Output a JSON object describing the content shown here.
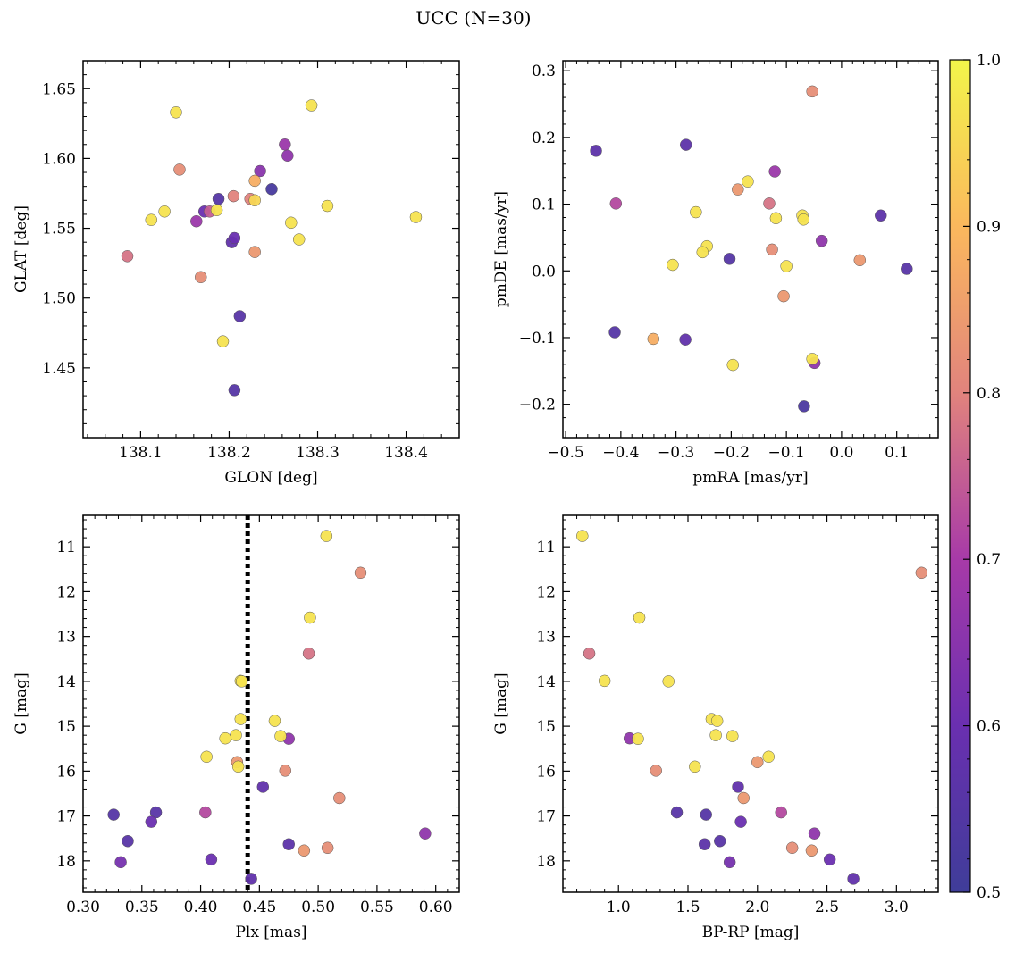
{
  "figure": {
    "title": "UCC (N=30)"
  },
  "chart_data": [
    {
      "type": "scatter",
      "xlabel": "GLON [deg]",
      "ylabel": "GLAT [deg]",
      "xlim": [
        138.035,
        138.46
      ],
      "ylim": [
        1.4,
        1.67
      ],
      "xticks": [
        138.1,
        138.2,
        138.3,
        138.4
      ],
      "yticks": [
        1.45,
        1.5,
        1.55,
        1.6,
        1.65
      ],
      "xtick_labels": [
        "138.1",
        "138.2",
        "138.3",
        "138.4"
      ],
      "ytick_labels": [
        "1.45",
        "1.50",
        "1.55",
        "1.60",
        "1.65"
      ],
      "points": [
        {
          "x": 138.14,
          "y": 1.633,
          "c": 0.97
        },
        {
          "x": 138.293,
          "y": 1.638,
          "c": 0.97
        },
        {
          "x": 138.263,
          "y": 1.61,
          "c": 0.68
        },
        {
          "x": 138.266,
          "y": 1.602,
          "c": 0.66
        },
        {
          "x": 138.144,
          "y": 1.592,
          "c": 0.82
        },
        {
          "x": 138.235,
          "y": 1.591,
          "c": 0.65
        },
        {
          "x": 138.229,
          "y": 1.584,
          "c": 0.88
        },
        {
          "x": 138.248,
          "y": 1.578,
          "c": 0.52
        },
        {
          "x": 138.205,
          "y": 1.573,
          "c": 0.8
        },
        {
          "x": 138.188,
          "y": 1.571,
          "c": 0.55
        },
        {
          "x": 138.224,
          "y": 1.571,
          "c": 0.8
        },
        {
          "x": 138.229,
          "y": 1.57,
          "c": 0.95
        },
        {
          "x": 138.311,
          "y": 1.566,
          "c": 0.97
        },
        {
          "x": 138.127,
          "y": 1.562,
          "c": 0.97
        },
        {
          "x": 138.172,
          "y": 1.562,
          "c": 0.6
        },
        {
          "x": 138.178,
          "y": 1.562,
          "c": 0.75
        },
        {
          "x": 138.186,
          "y": 1.563,
          "c": 0.97
        },
        {
          "x": 138.411,
          "y": 1.558,
          "c": 0.97
        },
        {
          "x": 138.112,
          "y": 1.556,
          "c": 0.97
        },
        {
          "x": 138.163,
          "y": 1.555,
          "c": 0.68
        },
        {
          "x": 138.27,
          "y": 1.554,
          "c": 0.97
        },
        {
          "x": 138.206,
          "y": 1.543,
          "c": 0.6
        },
        {
          "x": 138.279,
          "y": 1.542,
          "c": 0.97
        },
        {
          "x": 138.203,
          "y": 1.54,
          "c": 0.58
        },
        {
          "x": 138.229,
          "y": 1.533,
          "c": 0.84
        },
        {
          "x": 138.085,
          "y": 1.53,
          "c": 0.78
        },
        {
          "x": 138.168,
          "y": 1.515,
          "c": 0.82
        },
        {
          "x": 138.212,
          "y": 1.487,
          "c": 0.56
        },
        {
          "x": 138.193,
          "y": 1.469,
          "c": 0.97
        },
        {
          "x": 138.206,
          "y": 1.434,
          "c": 0.55
        }
      ]
    },
    {
      "type": "scatter",
      "xlabel": "pmRA [mas/yr]",
      "ylabel": "pmDE [mas/yr]",
      "xlim": [
        -0.505,
        0.175
      ],
      "ylim": [
        -0.25,
        0.315
      ],
      "xticks": [
        -0.5,
        -0.4,
        -0.3,
        -0.2,
        -0.1,
        0.0,
        0.1
      ],
      "yticks": [
        -0.2,
        -0.1,
        0.0,
        0.1,
        0.2,
        0.3
      ],
      "xtick_labels": [
        "−0.5",
        "−0.4",
        "−0.3",
        "−0.2",
        "−0.1",
        "0.0",
        "0.1"
      ],
      "ytick_labels": [
        "−0.2",
        "−0.1",
        "0.0",
        "0.1",
        "0.2",
        "0.3"
      ],
      "points": [
        {
          "x": -0.053,
          "y": 0.269,
          "c": 0.82
        },
        {
          "x": -0.445,
          "y": 0.18,
          "c": 0.57
        },
        {
          "x": -0.282,
          "y": 0.189,
          "c": 0.57
        },
        {
          "x": -0.121,
          "y": 0.149,
          "c": 0.68
        },
        {
          "x": -0.17,
          "y": 0.134,
          "c": 0.97
        },
        {
          "x": -0.188,
          "y": 0.122,
          "c": 0.84
        },
        {
          "x": -0.131,
          "y": 0.101,
          "c": 0.78
        },
        {
          "x": -0.409,
          "y": 0.101,
          "c": 0.72
        },
        {
          "x": -0.264,
          "y": 0.088,
          "c": 0.97
        },
        {
          "x": -0.071,
          "y": 0.083,
          "c": 0.97
        },
        {
          "x": 0.071,
          "y": 0.083,
          "c": 0.57
        },
        {
          "x": -0.119,
          "y": 0.079,
          "c": 0.97
        },
        {
          "x": -0.069,
          "y": 0.077,
          "c": 0.97
        },
        {
          "x": -0.036,
          "y": 0.045,
          "c": 0.66
        },
        {
          "x": -0.244,
          "y": 0.037,
          "c": 0.97
        },
        {
          "x": -0.126,
          "y": 0.032,
          "c": 0.82
        },
        {
          "x": -0.252,
          "y": 0.028,
          "c": 0.97
        },
        {
          "x": -0.203,
          "y": 0.018,
          "c": 0.55
        },
        {
          "x": 0.033,
          "y": 0.016,
          "c": 0.84
        },
        {
          "x": -0.306,
          "y": 0.009,
          "c": 0.97
        },
        {
          "x": -0.1,
          "y": 0.007,
          "c": 0.97
        },
        {
          "x": 0.118,
          "y": 0.003,
          "c": 0.56
        },
        {
          "x": -0.105,
          "y": -0.038,
          "c": 0.84
        },
        {
          "x": -0.411,
          "y": -0.092,
          "c": 0.55
        },
        {
          "x": -0.341,
          "y": -0.102,
          "c": 0.88
        },
        {
          "x": -0.283,
          "y": -0.103,
          "c": 0.58
        },
        {
          "x": -0.197,
          "y": -0.141,
          "c": 0.97
        },
        {
          "x": -0.053,
          "y": -0.132,
          "c": 0.97
        },
        {
          "x": -0.049,
          "y": -0.138,
          "c": 0.66
        },
        {
          "x": -0.068,
          "y": -0.203,
          "c": 0.53
        }
      ]
    },
    {
      "type": "scatter",
      "xlabel": "Plx [mas]",
      "ylabel": "G [mag]",
      "xlim": [
        0.3,
        0.62
      ],
      "ylim": [
        18.7,
        10.3
      ],
      "y_inverted": true,
      "vline": {
        "x": 0.44,
        "style": "dotted"
      },
      "xticks": [
        0.3,
        0.35,
        0.4,
        0.45,
        0.5,
        0.55,
        0.6
      ],
      "yticks": [
        11,
        12,
        13,
        14,
        15,
        16,
        17,
        18
      ],
      "xtick_labels": [
        "0.30",
        "0.35",
        "0.40",
        "0.45",
        "0.50",
        "0.55",
        "0.60"
      ],
      "ytick_labels": [
        "11",
        "12",
        "13",
        "14",
        "15",
        "16",
        "17",
        "18"
      ],
      "points": [
        {
          "x": 0.507,
          "y": 10.76,
          "c": 0.97
        },
        {
          "x": 0.536,
          "y": 11.58,
          "c": 0.82
        },
        {
          "x": 0.493,
          "y": 12.58,
          "c": 0.97
        },
        {
          "x": 0.492,
          "y": 13.38,
          "c": 0.78
        },
        {
          "x": 0.434,
          "y": 13.99,
          "c": 0.97
        },
        {
          "x": 0.435,
          "y": 14.0,
          "c": 0.97
        },
        {
          "x": 0.434,
          "y": 14.84,
          "c": 0.97
        },
        {
          "x": 0.463,
          "y": 14.88,
          "c": 0.97
        },
        {
          "x": 0.43,
          "y": 15.2,
          "c": 0.97
        },
        {
          "x": 0.468,
          "y": 15.22,
          "c": 0.97
        },
        {
          "x": 0.421,
          "y": 15.27,
          "c": 0.97
        },
        {
          "x": 0.475,
          "y": 15.28,
          "c": 0.66
        },
        {
          "x": 0.405,
          "y": 15.68,
          "c": 0.97
        },
        {
          "x": 0.431,
          "y": 15.8,
          "c": 0.84
        },
        {
          "x": 0.432,
          "y": 15.9,
          "c": 0.97
        },
        {
          "x": 0.472,
          "y": 15.99,
          "c": 0.82
        },
        {
          "x": 0.453,
          "y": 16.35,
          "c": 0.58
        },
        {
          "x": 0.518,
          "y": 16.6,
          "c": 0.82
        },
        {
          "x": 0.404,
          "y": 16.92,
          "c": 0.72
        },
        {
          "x": 0.362,
          "y": 16.92,
          "c": 0.56
        },
        {
          "x": 0.326,
          "y": 16.97,
          "c": 0.55
        },
        {
          "x": 0.358,
          "y": 17.13,
          "c": 0.6
        },
        {
          "x": 0.591,
          "y": 17.39,
          "c": 0.66
        },
        {
          "x": 0.338,
          "y": 17.56,
          "c": 0.56
        },
        {
          "x": 0.475,
          "y": 17.63,
          "c": 0.57
        },
        {
          "x": 0.508,
          "y": 17.71,
          "c": 0.82
        },
        {
          "x": 0.488,
          "y": 17.77,
          "c": 0.84
        },
        {
          "x": 0.409,
          "y": 17.97,
          "c": 0.6
        },
        {
          "x": 0.332,
          "y": 18.03,
          "c": 0.62
        },
        {
          "x": 0.443,
          "y": 18.4,
          "c": 0.58
        }
      ]
    },
    {
      "type": "scatter",
      "xlabel": "BP-RP [mag]",
      "ylabel": "G [mag]",
      "xlim": [
        0.6,
        3.3
      ],
      "ylim": [
        18.7,
        10.3
      ],
      "y_inverted": true,
      "xticks": [
        1.0,
        1.5,
        2.0,
        2.5,
        3.0
      ],
      "yticks": [
        11,
        12,
        13,
        14,
        15,
        16,
        17,
        18
      ],
      "xtick_labels": [
        "1.0",
        "1.5",
        "2.0",
        "2.5",
        "3.0"
      ],
      "ytick_labels": [
        "11",
        "12",
        "13",
        "14",
        "15",
        "16",
        "17",
        "18"
      ],
      "points": [
        {
          "x": 0.74,
          "y": 10.76,
          "c": 0.97
        },
        {
          "x": 3.18,
          "y": 11.58,
          "c": 0.82
        },
        {
          "x": 1.15,
          "y": 12.58,
          "c": 0.97
        },
        {
          "x": 0.79,
          "y": 13.38,
          "c": 0.78
        },
        {
          "x": 0.9,
          "y": 13.99,
          "c": 0.97
        },
        {
          "x": 1.36,
          "y": 14.0,
          "c": 0.97
        },
        {
          "x": 1.67,
          "y": 14.84,
          "c": 0.97
        },
        {
          "x": 1.71,
          "y": 14.88,
          "c": 0.97
        },
        {
          "x": 1.7,
          "y": 15.2,
          "c": 0.97
        },
        {
          "x": 1.82,
          "y": 15.22,
          "c": 0.97
        },
        {
          "x": 1.08,
          "y": 15.27,
          "c": 0.66
        },
        {
          "x": 1.14,
          "y": 15.28,
          "c": 0.97
        },
        {
          "x": 2.08,
          "y": 15.68,
          "c": 0.97
        },
        {
          "x": 2.0,
          "y": 15.8,
          "c": 0.84
        },
        {
          "x": 1.55,
          "y": 15.9,
          "c": 0.97
        },
        {
          "x": 1.27,
          "y": 15.99,
          "c": 0.82
        },
        {
          "x": 1.86,
          "y": 16.35,
          "c": 0.58
        },
        {
          "x": 1.9,
          "y": 16.6,
          "c": 0.84
        },
        {
          "x": 2.17,
          "y": 16.92,
          "c": 0.72
        },
        {
          "x": 1.42,
          "y": 16.92,
          "c": 0.56
        },
        {
          "x": 1.63,
          "y": 16.97,
          "c": 0.55
        },
        {
          "x": 1.88,
          "y": 17.13,
          "c": 0.6
        },
        {
          "x": 2.41,
          "y": 17.39,
          "c": 0.66
        },
        {
          "x": 1.73,
          "y": 17.56,
          "c": 0.56
        },
        {
          "x": 1.62,
          "y": 17.63,
          "c": 0.57
        },
        {
          "x": 2.25,
          "y": 17.71,
          "c": 0.82
        },
        {
          "x": 2.39,
          "y": 17.77,
          "c": 0.84
        },
        {
          "x": 2.52,
          "y": 17.97,
          "c": 0.6
        },
        {
          "x": 1.8,
          "y": 18.03,
          "c": 0.62
        },
        {
          "x": 2.69,
          "y": 18.4,
          "c": 0.58
        }
      ]
    }
  ],
  "colorbar": {
    "colormap": "plasma",
    "range": [
      0.5,
      1.0
    ],
    "ticks": [
      0.5,
      0.6,
      0.7,
      0.8,
      0.9,
      1.0
    ],
    "tick_labels": [
      "0.5",
      "0.6",
      "0.7",
      "0.8",
      "0.9",
      "1.0"
    ]
  }
}
